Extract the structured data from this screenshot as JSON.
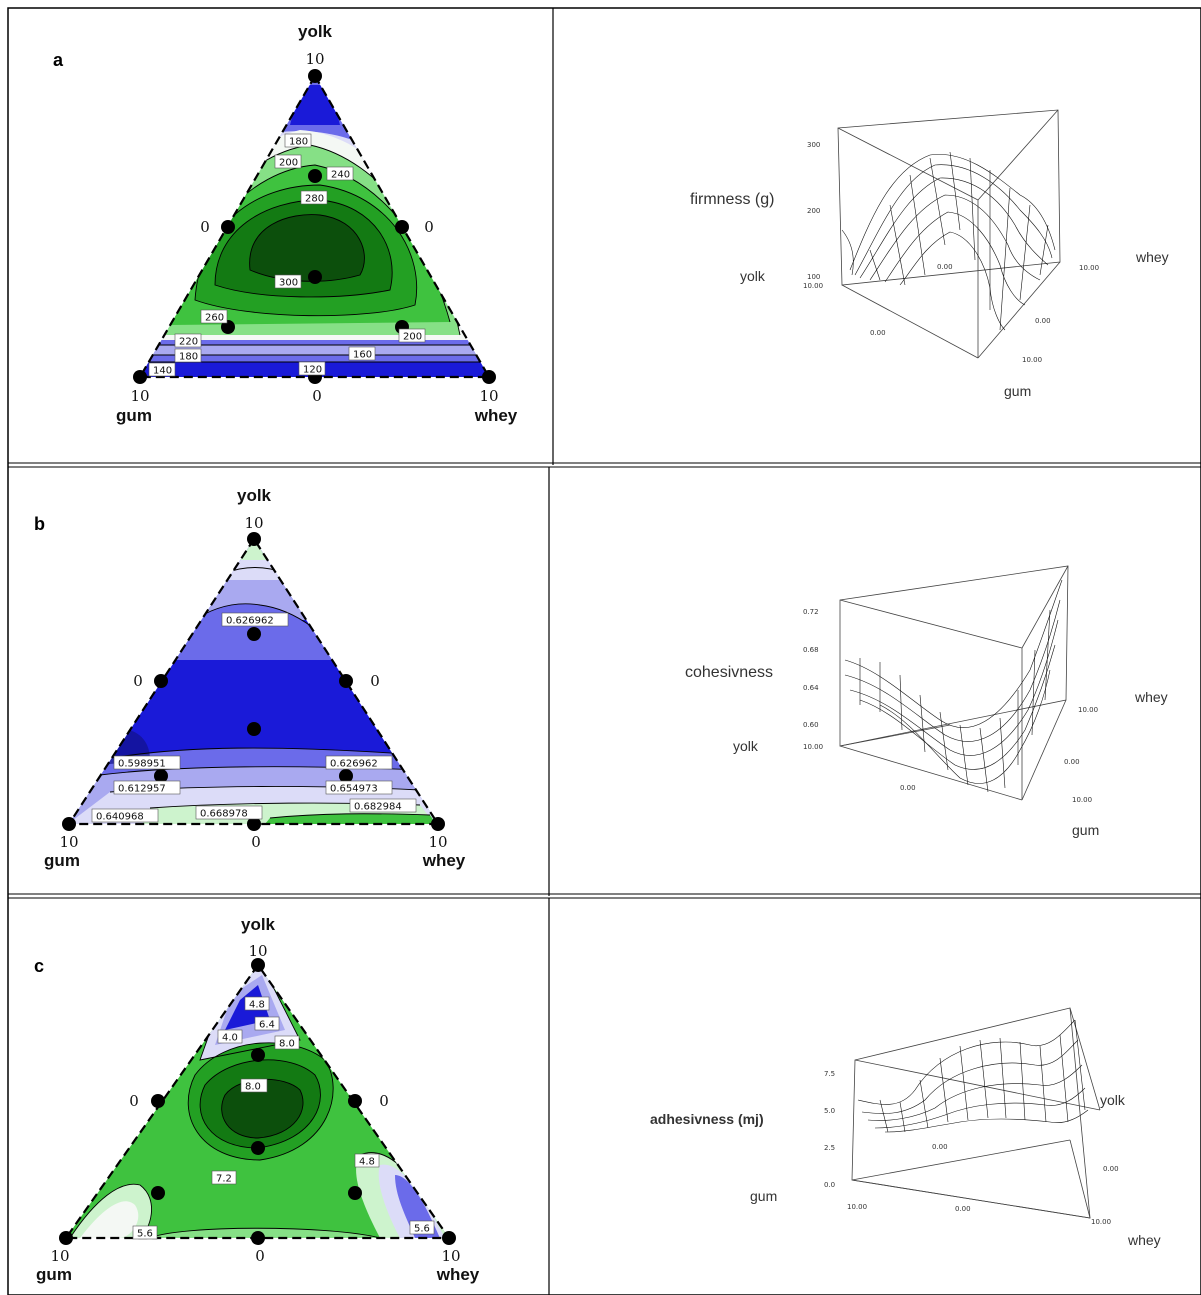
{
  "chart_data": [
    {
      "panel": "a",
      "type": "contour",
      "ternary": {
        "top_label": "yolk",
        "left_label": "gum",
        "right_label": "whey",
        "top_value": "10",
        "left_value": "10",
        "right_value": "10",
        "left_mid_value": "0",
        "right_mid_value": "0",
        "bottom_mid_value": "0"
      },
      "contour_labels": [
        "180",
        "200",
        "240",
        "280",
        "300",
        "260",
        "220",
        "180",
        "140",
        "200",
        "160",
        "120"
      ],
      "surface": {
        "zlabel": "firmness (g)",
        "z_ticks": [
          "300",
          "200",
          "100"
        ],
        "axis_labels": {
          "left": "yolk",
          "right": "whey",
          "front": "gum"
        },
        "tick_labels": {
          "left_base": "10.00",
          "back": "0.00",
          "right_top": "10.00",
          "front_left": "0.00",
          "right_mid": "0.00",
          "front_right": "10.00"
        }
      }
    },
    {
      "panel": "b",
      "type": "contour",
      "ternary": {
        "top_label": "yolk",
        "left_label": "gum",
        "right_label": "whey",
        "top_value": "10",
        "left_value": "10",
        "right_value": "10",
        "left_mid_value": "0",
        "right_mid_value": "0",
        "bottom_mid_value": "0"
      },
      "contour_labels": [
        "0.626962",
        "0.598951",
        "0.612957",
        "0.640968",
        "0.668978",
        "0.626962",
        "0.654973",
        "0.682984"
      ],
      "surface": {
        "zlabel": "cohesivness",
        "z_ticks": [
          "0.72",
          "0.68",
          "0.64",
          "0.60"
        ],
        "axis_labels": {
          "left": "yolk",
          "right": "whey",
          "front": "gum"
        },
        "tick_labels": {
          "left_base": "10.00",
          "right_top": "10.00",
          "front_left": "0.00",
          "right_mid": "0.00",
          "front_right": "10.00"
        }
      }
    },
    {
      "panel": "c",
      "type": "contour",
      "ternary": {
        "top_label": "yolk",
        "left_label": "gum",
        "right_label": "whey",
        "top_value": "10",
        "left_value": "10",
        "right_value": "10",
        "left_mid_value": "0",
        "right_mid_value": "0",
        "bottom_mid_value": "0"
      },
      "contour_labels": [
        "4.8",
        "6.4",
        "4.0",
        "8.0",
        "8.0",
        "7.2",
        "4.8",
        "5.6",
        "5.6"
      ],
      "surface": {
        "zlabel": "adhesivness (mj)",
        "z_ticks": [
          "7.5",
          "5.0",
          "2.5",
          "0.0"
        ],
        "axis_labels": {
          "left": "gum",
          "right": "whey",
          "back_right": "yolk"
        },
        "tick_labels": {
          "left_base": "10.00",
          "back": "0.00",
          "front_mid": "0.00",
          "right_mid": "0.00",
          "front_right": "10.00"
        }
      }
    }
  ],
  "colors": {
    "blue_dark": "#1a1ad8",
    "blue_mid": "#6b6bea",
    "blue_light": "#a9a9f0",
    "blue_pale": "#dcdcf8",
    "white_band": "#f4f8f4",
    "green_pale": "#cdf3cd",
    "green_light": "#86e086",
    "green_mid": "#3fc23f",
    "green": "#23a023",
    "green_dark": "#137a13",
    "green_deepest": "#0c4f0c"
  }
}
